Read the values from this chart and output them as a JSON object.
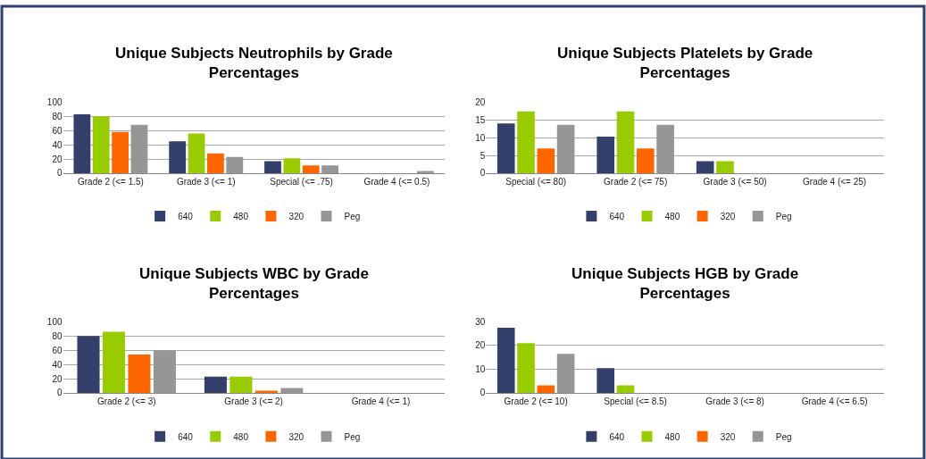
{
  "chart_data": [
    {
      "type": "bar",
      "title": "Unique Subjects Neutrophils by Grade Percentages",
      "categories": [
        "Grade 2 (<= 1.5)",
        "Grade 3 (<= 1)",
        "Special (<= .75)",
        "Grade 4 (<= 0.5)"
      ],
      "series": [
        {
          "name": "640",
          "color": "#343f6b",
          "values": [
            83,
            45,
            17,
            0
          ]
        },
        {
          "name": "480",
          "color": "#99cc00",
          "values": [
            80,
            56,
            21,
            0
          ]
        },
        {
          "name": "320",
          "color": "#ff6600",
          "values": [
            58,
            28,
            11,
            0
          ]
        },
        {
          "name": "Peg",
          "color": "#969696",
          "values": [
            68,
            23,
            11,
            3
          ]
        }
      ],
      "ylim": [
        0,
        100
      ],
      "yticks": [
        0,
        20,
        40,
        60,
        80,
        100
      ],
      "grid": "y",
      "legend": "bottom"
    },
    {
      "type": "bar",
      "title": "Unique Subjects Platelets by Grade Percentages",
      "categories": [
        "Special (<= 80)",
        "Grade 2 (<= 75)",
        "Grade 3 (<= 50)",
        "Grade 4 (<= 25)"
      ],
      "series": [
        {
          "name": "640",
          "color": "#343f6b",
          "values": [
            14,
            10.3,
            3.4,
            0
          ]
        },
        {
          "name": "480",
          "color": "#99cc00",
          "values": [
            17.4,
            17.4,
            3.4,
            0
          ]
        },
        {
          "name": "320",
          "color": "#ff6600",
          "values": [
            7,
            7,
            0,
            0
          ]
        },
        {
          "name": "Peg",
          "color": "#969696",
          "values": [
            13.6,
            13.6,
            0,
            0
          ]
        }
      ],
      "ylim": [
        0,
        20
      ],
      "yticks": [
        0,
        5,
        10,
        15,
        20
      ],
      "grid": "y",
      "legend": "bottom"
    },
    {
      "type": "bar",
      "title": "Unique Subjects WBC by Grade Percentages",
      "categories": [
        "Grade 2 (<= 3)",
        "Grade 3 (<= 2)",
        "Grade 4 (<= 1)"
      ],
      "series": [
        {
          "name": "640",
          "color": "#343f6b",
          "values": [
            80,
            23,
            0
          ]
        },
        {
          "name": "480",
          "color": "#99cc00",
          "values": [
            86,
            23,
            0
          ]
        },
        {
          "name": "320",
          "color": "#ff6600",
          "values": [
            54,
            3,
            0
          ]
        },
        {
          "name": "Peg",
          "color": "#969696",
          "values": [
            60,
            7,
            0
          ]
        }
      ],
      "ylim": [
        0,
        100
      ],
      "yticks": [
        0,
        20,
        40,
        60,
        80,
        100
      ],
      "grid": "y",
      "legend": "bottom"
    },
    {
      "type": "bar",
      "title": "Unique Subjects HGB by Grade Percentages",
      "categories": [
        "Grade 2 (<= 10)",
        "Special (<= 8.5)",
        "Grade 3 (<= 8)",
        "Grade 4 (<= 6.5)"
      ],
      "series": [
        {
          "name": "640",
          "color": "#343f6b",
          "values": [
            27.5,
            10.4,
            0,
            0
          ]
        },
        {
          "name": "480",
          "color": "#99cc00",
          "values": [
            21,
            3.2,
            0,
            0
          ]
        },
        {
          "name": "320",
          "color": "#ff6600",
          "values": [
            3.2,
            0,
            0,
            0
          ]
        },
        {
          "name": "Peg",
          "color": "#969696",
          "values": [
            16.5,
            0,
            0,
            0
          ]
        }
      ],
      "ylim": [
        0,
        30
      ],
      "yticks": [
        0,
        10,
        20,
        30
      ],
      "grid": "y",
      "legend": "bottom"
    }
  ]
}
